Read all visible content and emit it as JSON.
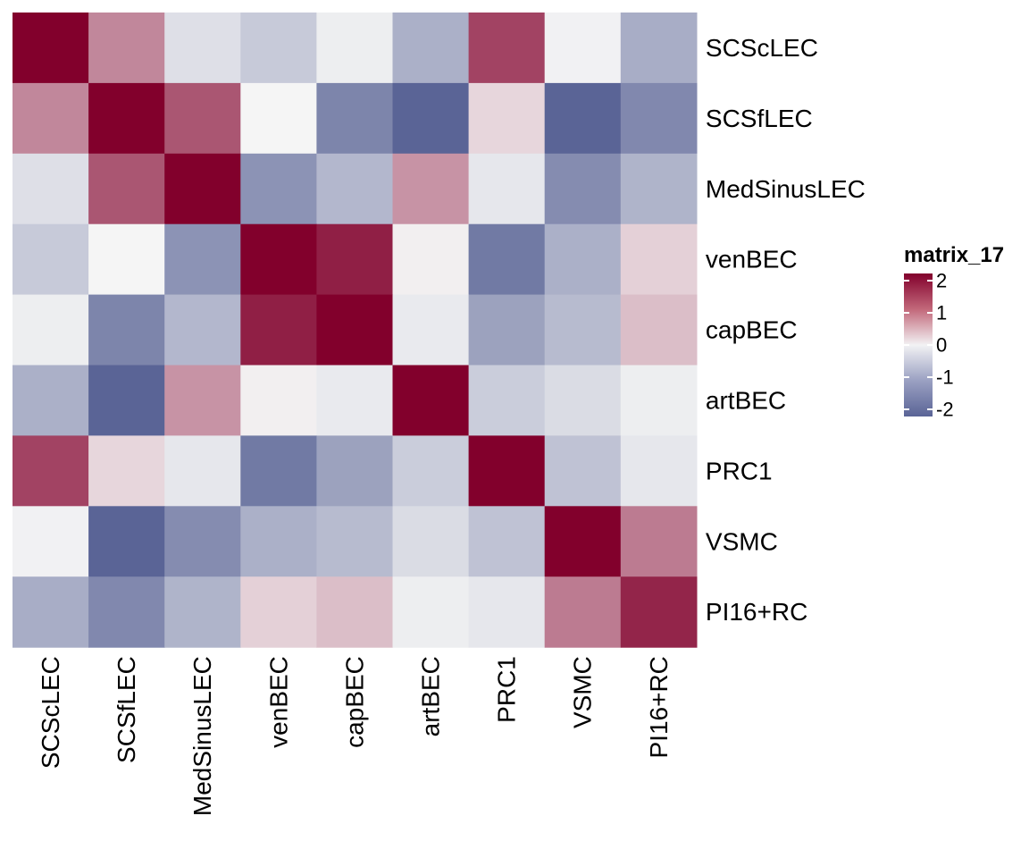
{
  "chart_data": {
    "type": "heatmap",
    "title": "",
    "xlabel": "",
    "ylabel": "",
    "rows": [
      "SCScLEC",
      "SCSfLEC",
      "MedSinusLEC",
      "venBEC",
      "capBEC",
      "artBEC",
      "PRC1",
      "VSMC",
      "PI16+RC"
    ],
    "columns": [
      "SCScLEC",
      "SCSfLEC",
      "MedSinusLEC",
      "venBEC",
      "capBEC",
      "artBEC",
      "PRC1",
      "VSMC",
      "PI16+RC"
    ],
    "values": [
      [
        2.0,
        0.9,
        -0.3,
        -0.6,
        -0.1,
        -0.95,
        1.45,
        -0.05,
        -1.0
      ],
      [
        0.9,
        2.0,
        1.3,
        0.0,
        -1.55,
        -2.0,
        0.25,
        -2.0,
        -1.5
      ],
      [
        -0.3,
        1.3,
        2.0,
        -1.35,
        -0.85,
        0.8,
        -0.2,
        -1.45,
        -0.9
      ],
      [
        -0.6,
        0.0,
        -1.35,
        2.0,
        1.75,
        0.05,
        -1.7,
        -0.95,
        0.3
      ],
      [
        -0.1,
        -1.55,
        -0.85,
        1.75,
        2.0,
        -0.15,
        -1.15,
        -0.8,
        0.45
      ],
      [
        -0.95,
        -2.0,
        0.8,
        0.05,
        -0.15,
        2.0,
        -0.55,
        -0.35,
        -0.1
      ],
      [
        1.45,
        0.25,
        -0.2,
        -1.7,
        -1.15,
        -0.55,
        2.0,
        -0.7,
        -0.2
      ],
      [
        -0.05,
        -2.0,
        -1.45,
        -0.95,
        -0.8,
        -0.35,
        -0.7,
        2.0,
        1.0
      ],
      [
        -1.0,
        -1.5,
        -0.9,
        0.3,
        0.45,
        -0.1,
        -0.2,
        1.0,
        1.7
      ]
    ],
    "legend": {
      "title": "matrix_17",
      "ticks": [
        2,
        1,
        0,
        -1,
        -2
      ],
      "tick_labels": [
        "2",
        "1",
        "0",
        "-1",
        "-2"
      ],
      "range": [
        -2,
        2
      ],
      "placement": "right"
    },
    "colors": {
      "low": "#5a6496",
      "mid": "#f5f5f5",
      "high": "#82002c"
    }
  }
}
